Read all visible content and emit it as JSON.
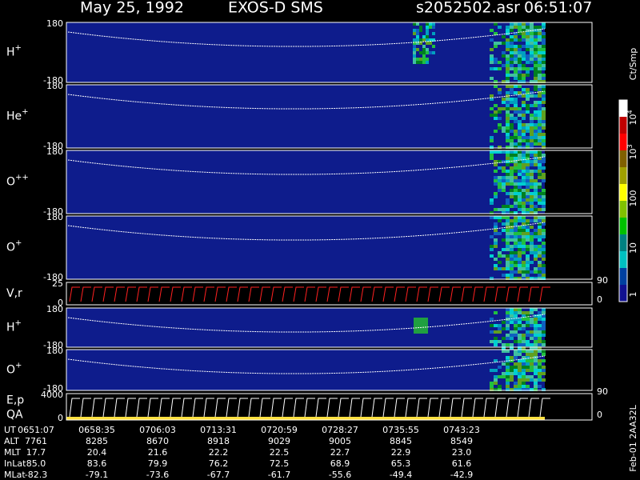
{
  "header": {
    "date": "May 25, 1992",
    "instrument": "EXOS-D SMS",
    "file": "s2052502.asr",
    "time": "06:51:07"
  },
  "panels": [
    {
      "label": "H",
      "sup": "+",
      "top": "180",
      "bottom": "-180"
    },
    {
      "label": "He",
      "sup": "+",
      "top": "180",
      "bottom": "-180"
    },
    {
      "label": "O",
      "sup": "++",
      "top": "180",
      "bottom": "-180"
    },
    {
      "label": "O",
      "sup": "+",
      "top": "180",
      "bottom": "-180"
    },
    {
      "label": "V,r",
      "top": "25",
      "bottom": "0",
      "right_top": "90",
      "right_bottom": "0"
    },
    {
      "label": "H",
      "sup": "+",
      "top": "180",
      "bottom": "-180"
    },
    {
      "label": "O",
      "sup": "+",
      "top": "180",
      "bottom": "-180"
    },
    {
      "label": "E,p",
      "label2": "QA",
      "top": "4000",
      "bottom": "0",
      "right_top": "90",
      "right_bottom": "0"
    }
  ],
  "colorbar": {
    "unit": "Ct/Smp",
    "ticks": [
      {
        "base": "10",
        "exp": "4"
      },
      {
        "base": "10",
        "exp": "3"
      },
      {
        "base": "100"
      },
      {
        "base": "10"
      },
      {
        "base": "1"
      }
    ]
  },
  "table": {
    "rows": [
      [
        "UT",
        "0651:07",
        "0658:35",
        "0706:03",
        "0713:31",
        "0720:59",
        "0728:27",
        "0735:55",
        "0743:23"
      ],
      [
        "ALT",
        "7761",
        "8285",
        "8670",
        "8918",
        "9029",
        "9005",
        "8845",
        "8549"
      ],
      [
        "MLT",
        "17.7",
        "20.4",
        "21.6",
        "22.2",
        "22.5",
        "22.7",
        "22.9",
        "23.0"
      ],
      [
        "InLat",
        "85.0",
        "83.6",
        "79.9",
        "76.2",
        "72.5",
        "68.9",
        "65.3",
        "61.6"
      ],
      [
        "MLat",
        "-82.3",
        "-79.1",
        "-73.6",
        "-67.7",
        "-61.7",
        "-55.6",
        "-49.4",
        "-42.9"
      ]
    ]
  },
  "footnote": "Feb-01 2AA32L"
}
